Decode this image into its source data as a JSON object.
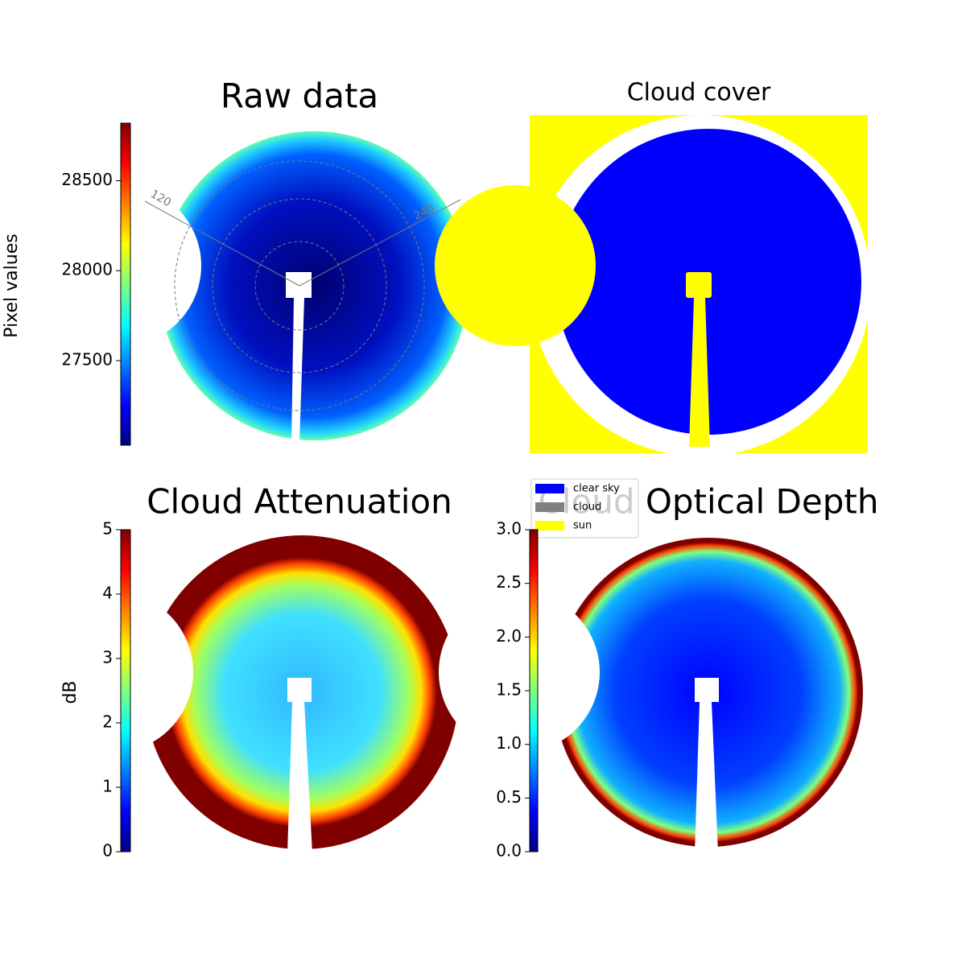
{
  "chart_data": [
    {
      "type": "image",
      "title": "Raw data",
      "colorbar_label": "Pixel values",
      "colormap": "jet",
      "ylim": [
        27030,
        28820
      ],
      "yticks": [
        27500,
        28000,
        28500
      ],
      "annotations": [
        "120",
        "240"
      ]
    },
    {
      "type": "image",
      "title": "Cloud cover",
      "series": [
        {
          "name": "clear sky",
          "color": "#0000ff"
        },
        {
          "name": "cloud",
          "color": "#808080"
        },
        {
          "name": "sun",
          "color": "#ffff00"
        }
      ]
    },
    {
      "type": "image",
      "title": "Cloud Attenuation",
      "colorbar_label": "dB",
      "colormap": "jet",
      "ylim": [
        0,
        5
      ],
      "yticks": [
        0,
        1,
        2,
        3,
        4,
        5
      ]
    },
    {
      "type": "image",
      "title": "Cloud Optical Depth",
      "colormap": "jet",
      "ylim": [
        0,
        3
      ],
      "yticks": [
        {
          "value": 0,
          "label": "0.0"
        },
        0.5,
        {
          "value": 1,
          "label": "1.0"
        },
        1.5,
        {
          "value": 2,
          "label": "2.0"
        },
        2.5,
        {
          "value": 3,
          "label": "3.0"
        }
      ]
    }
  ]
}
